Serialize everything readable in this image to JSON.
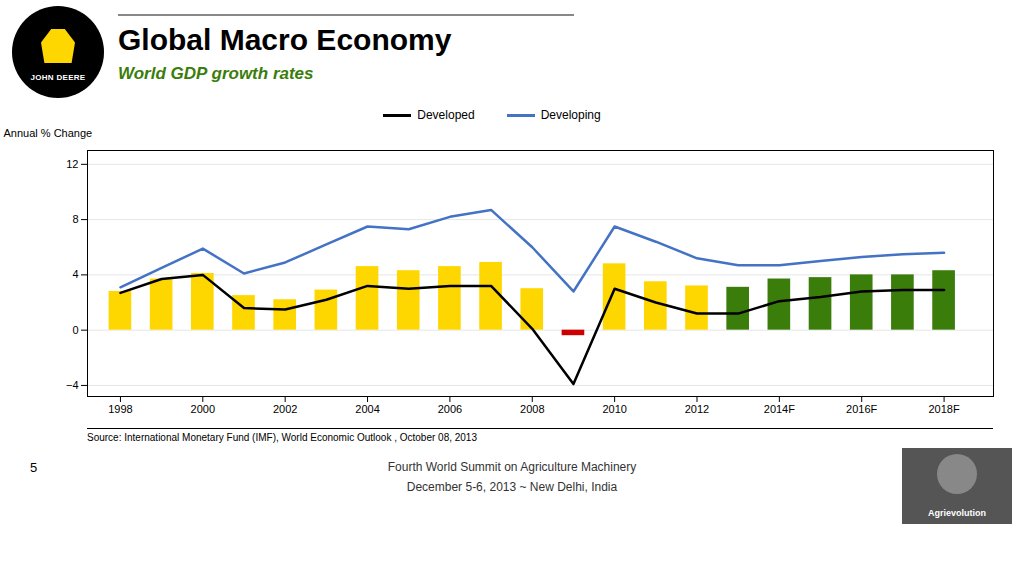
{
  "chart_data": {
    "type": "bar",
    "title": "Global Macro Economy",
    "subtitle": "World GDP growth rates",
    "ylabel": "Annual % Change",
    "x": [
      1998,
      1999,
      2000,
      2001,
      2002,
      2003,
      2004,
      2005,
      2006,
      2007,
      2008,
      2009,
      2010,
      2011,
      2012,
      2013,
      2014,
      2015,
      2016,
      2017,
      2018
    ],
    "xlim": [
      1997.2,
      2019.2
    ],
    "xticks": [
      1998,
      2000,
      2002,
      2004,
      2006,
      2008,
      2010,
      2012,
      {
        "value": 2014,
        "label": "2014F"
      },
      {
        "value": 2016,
        "label": "2016F"
      },
      {
        "value": 2018,
        "label": "2018F"
      }
    ],
    "ylim": [
      -4.8,
      13.0
    ],
    "yticks": [
      -4,
      0,
      4,
      8,
      12
    ],
    "grid": true,
    "legend": "top",
    "series": [
      {
        "type": "bar",
        "values": [
          2.8,
          3.7,
          4.1,
          2.5,
          2.2,
          2.9,
          4.6,
          4.3,
          4.6,
          4.9,
          3.0,
          -0.4,
          4.8,
          3.5,
          3.2,
          3.1,
          3.7,
          3.8,
          4.0,
          4.0,
          4.3
        ],
        "colors": [
          "#FFD700",
          "#FFD700",
          "#FFD700",
          "#FFD700",
          "#FFD700",
          "#FFD700",
          "#FFD700",
          "#FFD700",
          "#FFD700",
          "#FFD700",
          "#FFD700",
          "#CC0000",
          "#FFD700",
          "#FFD700",
          "#FFD700",
          "#3a7d0a",
          "#3a7d0a",
          "#3a7d0a",
          "#3a7d0a",
          "#3a7d0a",
          "#3a7d0a"
        ]
      },
      {
        "name": "Developed",
        "type": "line",
        "color": "#000000",
        "values": [
          2.7,
          3.7,
          4.0,
          1.6,
          1.5,
          2.2,
          3.2,
          3.0,
          3.2,
          3.2,
          0.1,
          -3.9,
          3.0,
          2.0,
          1.2,
          1.2,
          2.1,
          2.4,
          2.8,
          2.9,
          2.9
        ]
      },
      {
        "name": "Developing",
        "type": "line",
        "color": "#4472C4",
        "values": [
          3.1,
          4.5,
          5.9,
          4.1,
          4.9,
          6.2,
          7.5,
          7.3,
          8.2,
          8.7,
          6.0,
          2.8,
          7.5,
          6.4,
          5.2,
          4.7,
          4.7,
          5.0,
          5.3,
          5.5,
          5.6
        ]
      }
    ],
    "annotations": [
      "Source:  International Monetary Fund (IMF), World Economic Outlook , October 08, 2013",
      "Fourth World Summit on Agriculture Machinery",
      "December 5-6, 2013 ~ New Delhi, India",
      "5",
      "JOHN DEERE",
      "Agrievolution"
    ]
  }
}
